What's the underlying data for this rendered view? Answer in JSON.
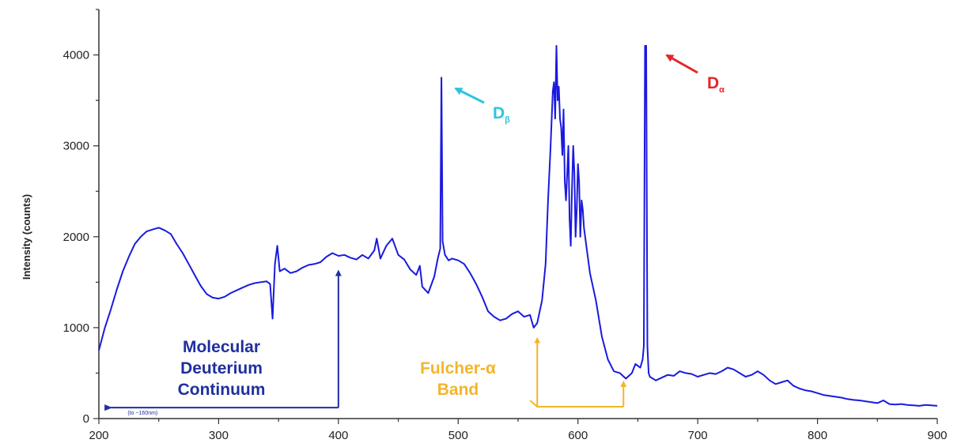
{
  "chart_data": {
    "type": "line",
    "title": "",
    "xlabel": "",
    "ylabel": "Intensity (counts)",
    "xlim": [
      200,
      900
    ],
    "ylim": [
      0,
      4500
    ],
    "xticks": [
      200,
      300,
      400,
      500,
      600,
      700,
      800,
      900
    ],
    "yticks": [
      0,
      1000,
      2000,
      3000,
      4000
    ],
    "grid": false,
    "colors": {
      "line": "#1a1adf",
      "continuum": "#1f2f9f",
      "fulcher": "#f2b62b",
      "d_beta": "#2ec4e0",
      "d_alpha": "#e3262b"
    },
    "series": [
      {
        "name": "",
        "x": [
          200,
          205,
          210,
          215,
          220,
          225,
          230,
          235,
          240,
          245,
          250,
          255,
          260,
          265,
          270,
          275,
          280,
          285,
          290,
          295,
          300,
          305,
          310,
          315,
          320,
          325,
          330,
          335,
          340,
          343,
          345,
          347,
          349,
          351,
          355,
          360,
          365,
          370,
          375,
          380,
          385,
          390,
          395,
          400,
          405,
          410,
          415,
          420,
          425,
          430,
          432,
          435,
          440,
          445,
          450,
          455,
          460,
          465,
          468,
          470,
          475,
          480,
          483,
          485,
          486,
          487,
          489,
          492,
          495,
          500,
          505,
          510,
          515,
          520,
          525,
          530,
          535,
          540,
          545,
          550,
          555,
          560,
          563,
          566,
          570,
          573,
          575,
          577,
          579,
          580,
          581,
          582,
          583,
          584,
          585,
          586,
          587,
          588,
          589,
          590,
          591,
          592,
          593,
          594,
          595,
          596,
          597,
          598,
          599,
          600,
          601,
          602,
          603,
          604,
          605,
          607,
          610,
          615,
          620,
          625,
          630,
          635,
          640,
          645,
          648,
          650,
          652,
          654,
          655,
          656,
          657,
          658,
          659,
          660,
          665,
          670,
          675,
          680,
          685,
          690,
          695,
          700,
          705,
          710,
          715,
          720,
          725,
          730,
          735,
          740,
          745,
          750,
          755,
          760,
          765,
          770,
          775,
          780,
          785,
          790,
          795,
          800,
          805,
          810,
          815,
          820,
          825,
          830,
          835,
          840,
          845,
          850,
          855,
          860,
          865,
          870,
          875,
          880,
          885,
          890,
          895,
          900
        ],
        "values": [
          750,
          1000,
          1200,
          1420,
          1620,
          1780,
          1920,
          2000,
          2060,
          2080,
          2100,
          2070,
          2030,
          1920,
          1820,
          1700,
          1580,
          1460,
          1370,
          1330,
          1320,
          1340,
          1380,
          1410,
          1440,
          1470,
          1490,
          1500,
          1510,
          1480,
          1100,
          1700,
          1900,
          1620,
          1650,
          1600,
          1620,
          1660,
          1690,
          1700,
          1720,
          1780,
          1820,
          1790,
          1800,
          1770,
          1750,
          1800,
          1760,
          1850,
          1980,
          1760,
          1900,
          1980,
          1800,
          1750,
          1640,
          1580,
          1680,
          1450,
          1380,
          1560,
          1760,
          1870,
          3750,
          1950,
          1800,
          1740,
          1760,
          1740,
          1700,
          1600,
          1480,
          1340,
          1180,
          1120,
          1080,
          1100,
          1150,
          1180,
          1120,
          1140,
          1000,
          1050,
          1300,
          1700,
          2400,
          2950,
          3600,
          3700,
          3300,
          4100,
          3500,
          3650,
          3300,
          3200,
          2900,
          3400,
          2600,
          2400,
          2700,
          3000,
          2200,
          1900,
          2500,
          3000,
          2700,
          2000,
          2300,
          2800,
          2600,
          2000,
          2400,
          2300,
          2100,
          1900,
          1600,
          1300,
          900,
          650,
          520,
          500,
          440,
          500,
          600,
          580,
          560,
          650,
          800,
          4100,
          4100,
          800,
          500,
          460,
          420,
          450,
          480,
          470,
          520,
          500,
          490,
          460,
          480,
          500,
          490,
          520,
          560,
          540,
          500,
          460,
          480,
          520,
          480,
          420,
          380,
          400,
          420,
          360,
          330,
          310,
          300,
          280,
          260,
          250,
          240,
          230,
          215,
          205,
          200,
          190,
          180,
          170,
          200,
          160,
          155,
          160,
          150,
          145,
          140,
          150,
          145,
          140
        ]
      }
    ],
    "annotations": {
      "continuum_lines": [
        "Molecular",
        "Deuterium",
        "Continuum"
      ],
      "continuum_arrow_label": "(to ~160nm)",
      "fulcher_lines": [
        "Fulcher-α",
        "Band"
      ],
      "d_beta_label": "D",
      "d_beta_sub": "β",
      "d_alpha_label": "D",
      "d_alpha_sub": "α"
    }
  }
}
